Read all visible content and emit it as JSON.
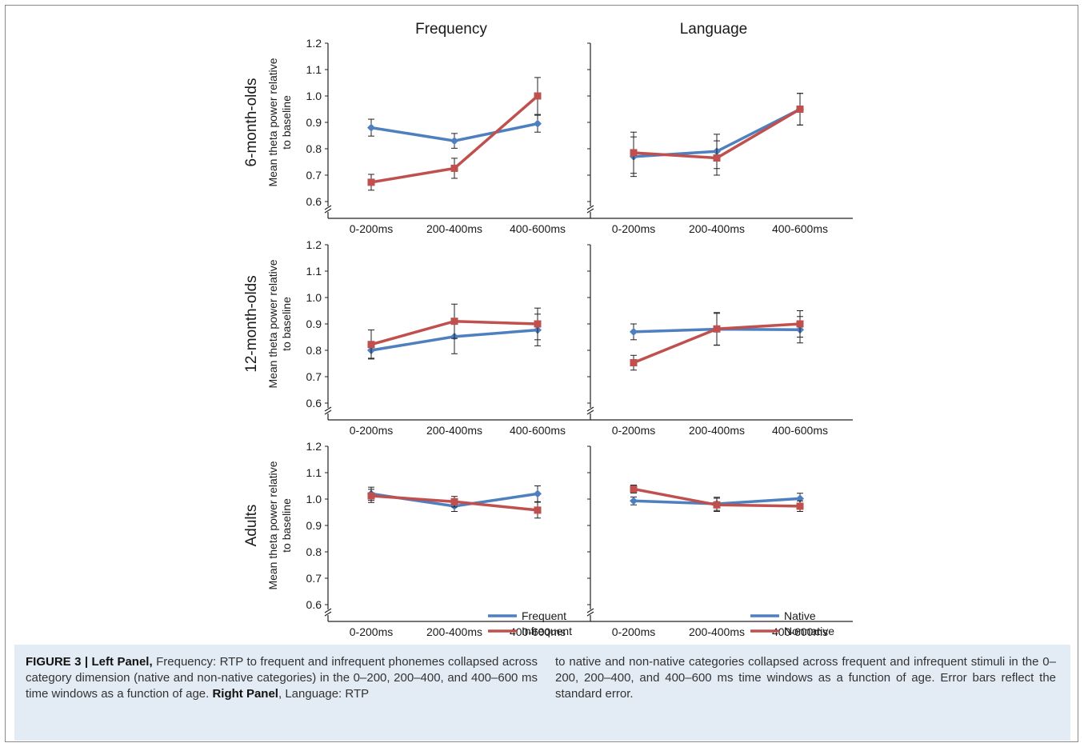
{
  "chart_data": {
    "type": "line",
    "column_titles": [
      "Frequency",
      "Language"
    ],
    "row_labels": [
      "6-month-olds",
      "12-month-olds",
      "Adults"
    ],
    "ylabel": "Mean theta power relative to baseline",
    "ylabel_lines": [
      "Mean theta power relative",
      "to baseline"
    ],
    "categories": [
      "0-200ms",
      "200-400ms",
      "400-600ms"
    ],
    "ylim": [
      0.6,
      1.2
    ],
    "yticks": [
      "0.6",
      "0.7",
      "0.8",
      "0.9",
      "1.0",
      "1.1",
      "1.2"
    ],
    "series_colors": [
      "#4e7fbf",
      "#c0504d"
    ],
    "panels": [
      {
        "row": 0,
        "col": 0,
        "series": [
          {
            "name": "Frequent",
            "values": [
              0.88,
              0.83,
              0.895
            ],
            "errors": [
              0.032,
              0.028,
              0.032
            ]
          },
          {
            "name": "Infrequent",
            "values": [
              0.673,
              0.726,
              1.0
            ],
            "errors": [
              0.03,
              0.038,
              0.07
            ]
          }
        ]
      },
      {
        "row": 0,
        "col": 1,
        "series": [
          {
            "name": "Native",
            "values": [
              0.77,
              0.79,
              0.95
            ],
            "errors": [
              0.075,
              0.065,
              0.06
            ]
          },
          {
            "name": "Nonnative",
            "values": [
              0.785,
              0.765,
              0.95
            ],
            "errors": [
              0.078,
              0.065,
              0.06
            ]
          }
        ]
      },
      {
        "row": 1,
        "col": 0,
        "series": [
          {
            "name": "Frequent",
            "values": [
              0.8,
              0.852,
              0.877
            ],
            "errors": [
              0.03,
              0.065,
              0.06
            ]
          },
          {
            "name": "Infrequent",
            "values": [
              0.822,
              0.91,
              0.9
            ],
            "errors": [
              0.055,
              0.065,
              0.06
            ]
          }
        ]
      },
      {
        "row": 1,
        "col": 1,
        "series": [
          {
            "name": "Native",
            "values": [
              0.87,
              0.88,
              0.878
            ],
            "errors": [
              0.03,
              0.06,
              0.05
            ]
          },
          {
            "name": "Nonnative",
            "values": [
              0.753,
              0.881,
              0.9
            ],
            "errors": [
              0.028,
              0.062,
              0.05
            ]
          }
        ]
      },
      {
        "row": 2,
        "col": 0,
        "series": [
          {
            "name": "Frequent",
            "values": [
              1.02,
              0.973,
              1.02
            ],
            "errors": [
              0.025,
              0.02,
              0.03
            ]
          },
          {
            "name": "Infrequent",
            "values": [
              1.012,
              0.99,
              0.958
            ],
            "errors": [
              0.025,
              0.02,
              0.03
            ]
          }
        ]
      },
      {
        "row": 2,
        "col": 1,
        "series": [
          {
            "name": "Native",
            "values": [
              0.993,
              0.982,
              1.002
            ],
            "errors": [
              0.015,
              0.025,
              0.02
            ]
          },
          {
            "name": "Nonnative",
            "values": [
              1.038,
              0.978,
              0.973
            ],
            "errors": [
              0.015,
              0.025,
              0.02
            ]
          }
        ]
      }
    ],
    "legends": [
      {
        "col": 0,
        "row": 2,
        "entries": [
          "Frequent",
          "Infrequent"
        ],
        "position": "bottom-right"
      },
      {
        "col": 1,
        "row": 2,
        "entries": [
          "Native",
          "Nonnative"
        ],
        "position": "bottom-right"
      }
    ],
    "grid": false
  },
  "caption": {
    "left_html": "<b>FIGURE 3 | Left Panel,</b> Frequency: RTP to frequent and infrequent phonemes collapsed across category dimension (native and non-native categories) in the 0–200, 200–400, and 400–600 ms time windows as a function of age. <b>Right Panel</b>, Language: RTP",
    "right": "to native and non-native categories collapsed across frequent and infrequent stimuli in the 0–200, 200–400, and 400–600 ms time windows as a function of age. Error bars reflect the standard error."
  }
}
